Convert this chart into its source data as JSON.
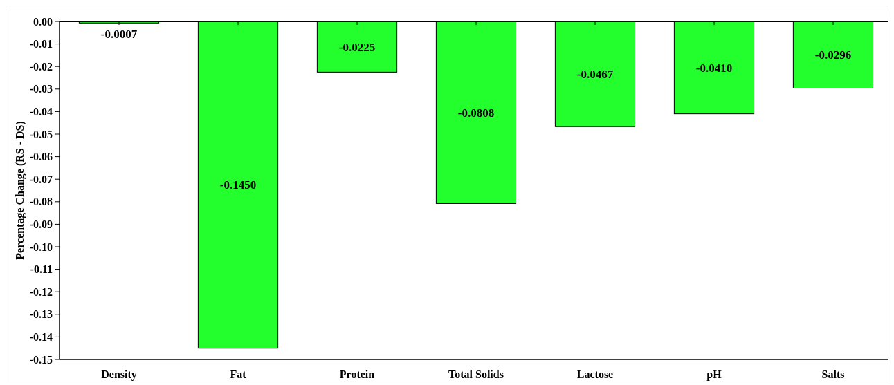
{
  "chart_data": {
    "type": "bar",
    "ylabel": "Percentage Change (RS - DS)",
    "categories": [
      "Density",
      "Fat",
      "Protein",
      "Total Solids",
      "Lactose",
      "pH",
      "Salts"
    ],
    "values": [
      -0.0007,
      -0.145,
      -0.0225,
      -0.0808,
      -0.0467,
      -0.041,
      -0.0296
    ],
    "value_labels": [
      "-0.0007",
      "-0.1450",
      "-0.0225",
      "-0.0808",
      "-0.0467",
      "-0.0410",
      "-0.0296"
    ],
    "color": "#22ff2c",
    "ylim": [
      -0.15,
      0
    ],
    "yticks": [
      {
        "value": 0,
        "label": "0.00"
      },
      {
        "value": -0.01,
        "label": "-0.01"
      },
      {
        "value": -0.02,
        "label": "-0.02"
      },
      {
        "value": -0.03,
        "label": "-0.03"
      },
      {
        "value": -0.04,
        "label": "-0.04"
      },
      {
        "value": -0.05,
        "label": "-0.05"
      },
      {
        "value": -0.06,
        "label": "-0.06"
      },
      {
        "value": -0.07,
        "label": "-0.07"
      },
      {
        "value": -0.08,
        "label": "-0.08"
      },
      {
        "value": -0.09,
        "label": "-0.09"
      },
      {
        "value": -0.1,
        "label": "-0.10"
      },
      {
        "value": -0.11,
        "label": "-0.11"
      },
      {
        "value": -0.12,
        "label": "-0.12"
      },
      {
        "value": -0.13,
        "label": "-0.13"
      },
      {
        "value": -0.14,
        "label": "-0.14"
      },
      {
        "value": -0.15,
        "label": "-0.15"
      }
    ],
    "grid": false
  }
}
